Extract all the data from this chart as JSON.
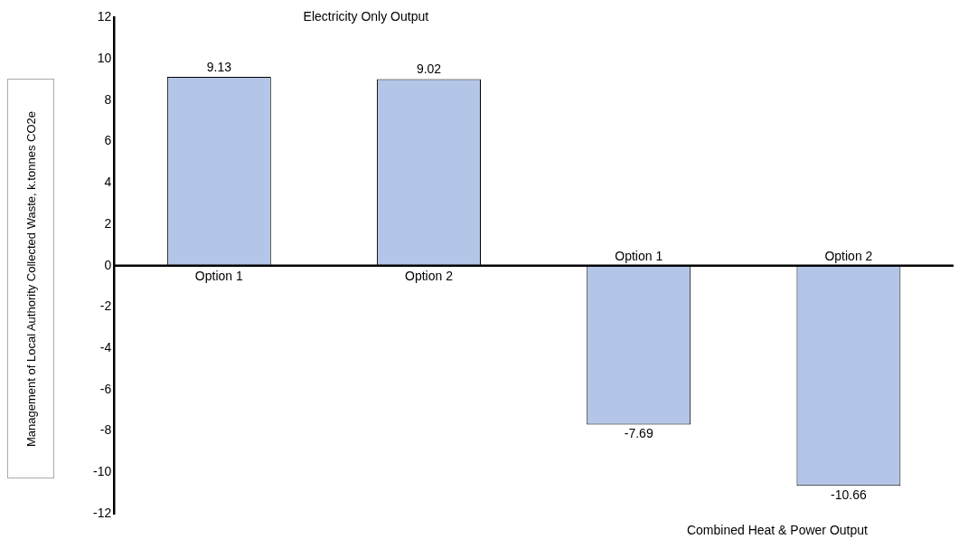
{
  "chart_data": {
    "type": "bar",
    "ylabel": "Management of Local Authority Collected Waste, k.tonnes CO2e",
    "categories": [
      "Option 1",
      "Option 2",
      "Option 1",
      "Option 2"
    ],
    "values": [
      9.13,
      9.02,
      -7.69,
      -10.66
    ],
    "color": "#b4c6e7",
    "ylim": [
      -12,
      12
    ],
    "yticks": [
      -12,
      -10,
      -8,
      -6,
      -4,
      -2,
      0,
      2,
      4,
      6,
      8,
      10,
      12
    ],
    "grid": false,
    "legend": false,
    "data_labels": true,
    "annotations": [
      "Electricity Only Output",
      "Combined Heat & Power Output"
    ]
  }
}
